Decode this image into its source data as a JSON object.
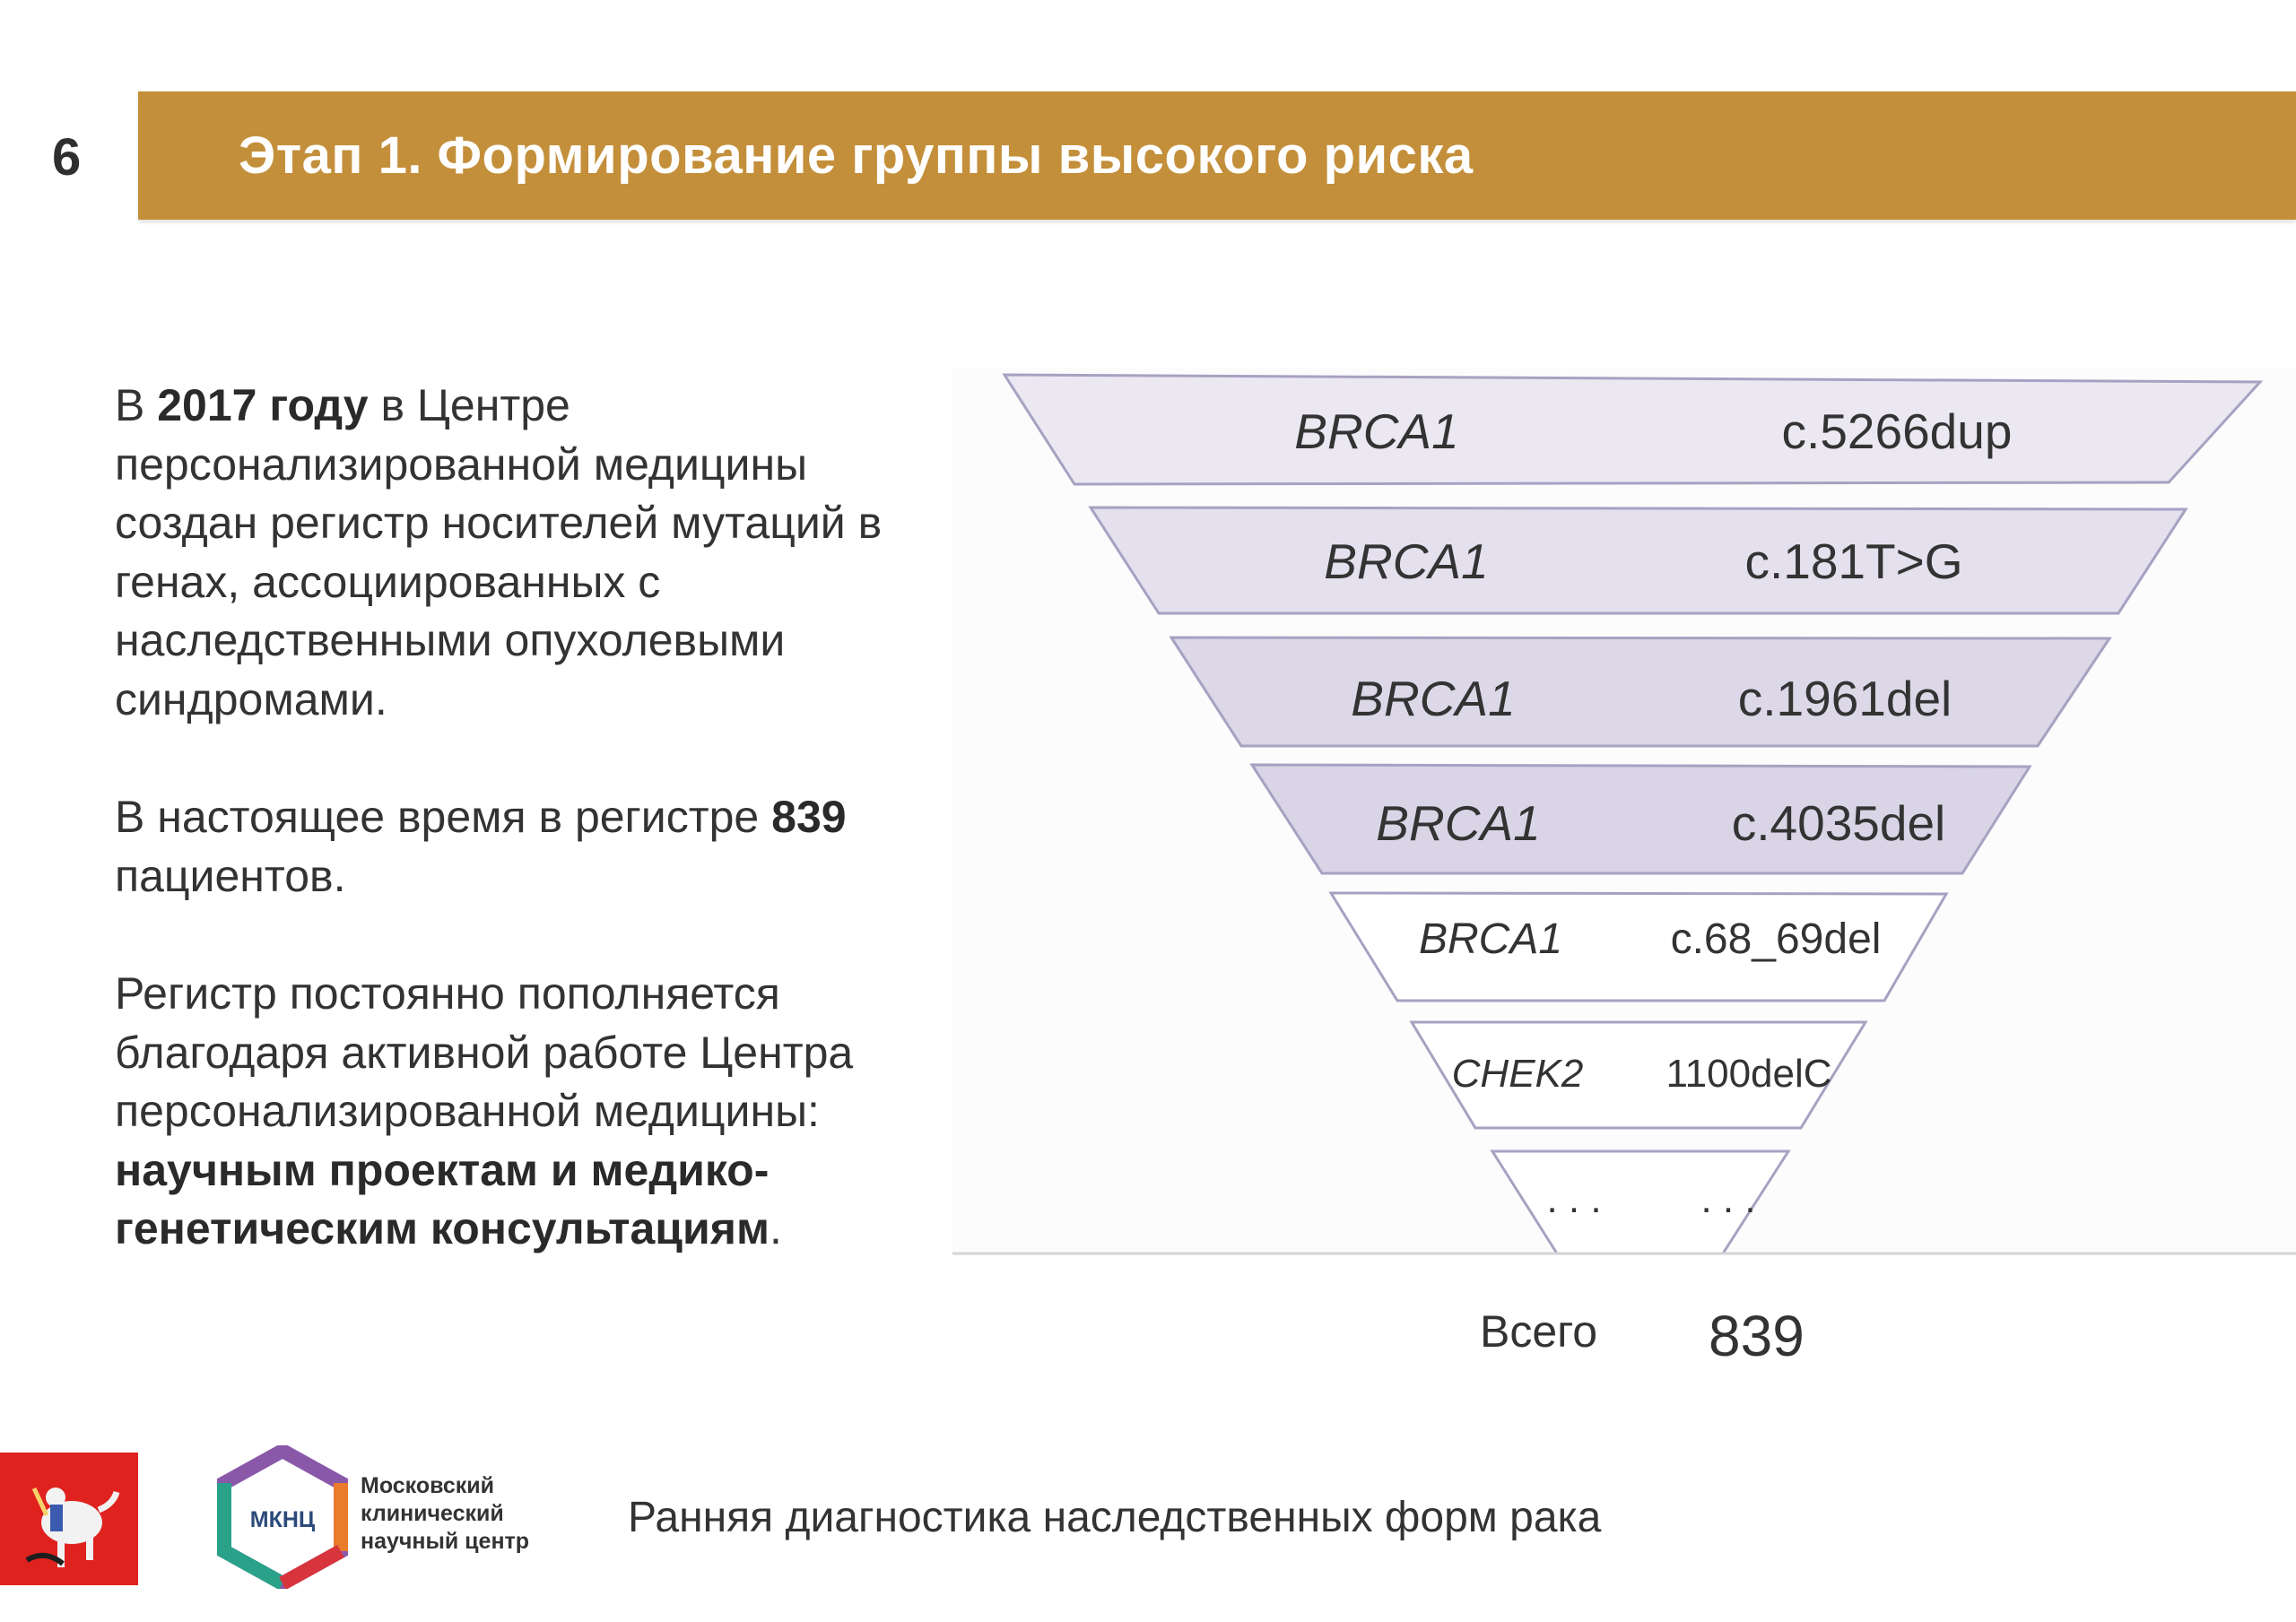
{
  "slide": {
    "number": "6",
    "title": "Этап 1. Формирование группы высокого риска"
  },
  "body": {
    "p1": {
      "a": "В ",
      "b_bold": "2017 году",
      "c": " в Центре персонализированной медицины создан регистр носителей мутаций в генах, ассоциированных с наследственными опухолевыми синдромами."
    },
    "p2": {
      "a": "В настоящее время в регистре ",
      "b_bold": "839",
      "c": " пациентов."
    },
    "p3": {
      "a": "Регистр постоянно пополняется благодаря активной работе Центра персонализированной медицины: ",
      "b_bold": "научным проектам и медико-генетическим консультациям",
      "c": "."
    }
  },
  "funnel": {
    "rows": [
      {
        "gene": "BRCA1",
        "variant": "c.5266dup"
      },
      {
        "gene": "BRCA1",
        "variant": "c.181T>G"
      },
      {
        "gene": "BRCA1",
        "variant": "c.1961del"
      },
      {
        "gene": "BRCA1",
        "variant": "c.4035del"
      },
      {
        "gene": "BRCA1",
        "variant": "c.68_69del"
      },
      {
        "gene": "CHEK2",
        "variant": "1100delC"
      },
      {
        "gene": ". . .",
        "variant": ". . ."
      }
    ],
    "total_label": "Всего",
    "total_value": "839",
    "colors": {
      "fills": [
        "#ebe8f2",
        "#e4e0ee",
        "#dcd8e8",
        "#d9d5e6",
        "#ffffff",
        "#ffffff",
        "#ffffff"
      ],
      "stroke": "#a7a1c2"
    }
  },
  "footer": {
    "caption": "Ранняя диагностика наследственных форм рака",
    "org_abbr": "МКНЦ",
    "org_name_line1": "Московский",
    "org_name_line2": "клинический",
    "org_name_line3": "научный центр"
  }
}
